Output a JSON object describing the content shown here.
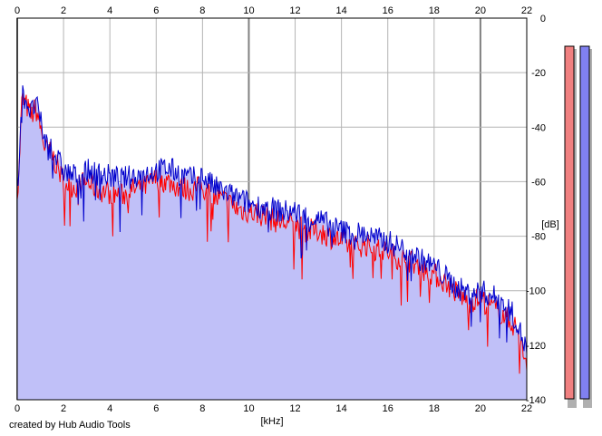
{
  "chart_data": {
    "type": "area",
    "x_ticks": [
      "0",
      "2",
      "4",
      "6",
      "8",
      "10",
      "12",
      "14",
      "16",
      "18",
      "20",
      "22"
    ],
    "y_ticks": [
      "0",
      "-20",
      "-40",
      "-60",
      "-80",
      "-100",
      "-120",
      "-140"
    ],
    "xlabel": "[kHz]",
    "ylabel": "[dB]",
    "xlim": [
      0,
      22
    ],
    "ylim": [
      -140,
      0
    ],
    "grid": true,
    "fill_color": "#c0c0f8",
    "series": [
      {
        "color": "#ff0000",
        "x": [
          0.05,
          0.2,
          0.4,
          0.6,
          0.8,
          1.0,
          1.2,
          1.5,
          2.0,
          2.5,
          3.0,
          3.5,
          4.0,
          4.5,
          5.0,
          5.5,
          6.0,
          6.5,
          7.0,
          7.5,
          8.0,
          8.5,
          9.0,
          9.5,
          10.0,
          10.5,
          11.0,
          11.5,
          12.0,
          12.5,
          13.0,
          13.5,
          14.0,
          14.5,
          15.0,
          15.5,
          16.0,
          16.5,
          17.0,
          17.5,
          18.0,
          18.5,
          19.0,
          19.5,
          20.0,
          20.5,
          21.0,
          21.5,
          22.0
        ],
        "values": [
          -62,
          -30,
          -32,
          -36,
          -33,
          -40,
          -48,
          -50,
          -60,
          -62,
          -60,
          -63,
          -64,
          -65,
          -63,
          -62,
          -59,
          -60,
          -62,
          -63,
          -62,
          -66,
          -67,
          -70,
          -71,
          -72,
          -74,
          -75,
          -76,
          -78,
          -78,
          -80,
          -82,
          -84,
          -83,
          -85,
          -86,
          -88,
          -89,
          -92,
          -94,
          -97,
          -101,
          -104,
          -103,
          -106,
          -109,
          -113,
          -126
        ]
      },
      {
        "color": "#0000cc",
        "x": [
          0.05,
          0.2,
          0.4,
          0.6,
          0.8,
          1.0,
          1.2,
          1.5,
          2.0,
          2.5,
          3.0,
          3.5,
          4.0,
          4.5,
          5.0,
          5.5,
          6.0,
          6.5,
          7.0,
          7.5,
          8.0,
          8.5,
          9.0,
          9.5,
          10.0,
          10.5,
          11.0,
          11.5,
          12.0,
          12.5,
          13.0,
          13.5,
          14.0,
          14.5,
          15.0,
          15.5,
          16.0,
          16.5,
          17.0,
          17.5,
          18.0,
          18.5,
          19.0,
          19.5,
          20.0,
          20.5,
          21.0,
          21.5,
          22.0
        ],
        "values": [
          -58,
          -28,
          -30,
          -35,
          -31,
          -38,
          -45,
          -48,
          -56,
          -58,
          -56,
          -57,
          -58,
          -59,
          -58,
          -57,
          -56,
          -55,
          -57,
          -59,
          -58,
          -62,
          -64,
          -66,
          -68,
          -69,
          -70,
          -71,
          -71,
          -73,
          -74,
          -76,
          -78,
          -79,
          -79,
          -81,
          -82,
          -84,
          -86,
          -89,
          -91,
          -95,
          -99,
          -101,
          -100,
          -102,
          -104,
          -110,
          -122
        ]
      }
    ]
  },
  "meters": [
    {
      "color": "#f08080"
    },
    {
      "color": "#8080f0"
    }
  ],
  "footer": {
    "credit": "created by Hub Audio Tools"
  }
}
